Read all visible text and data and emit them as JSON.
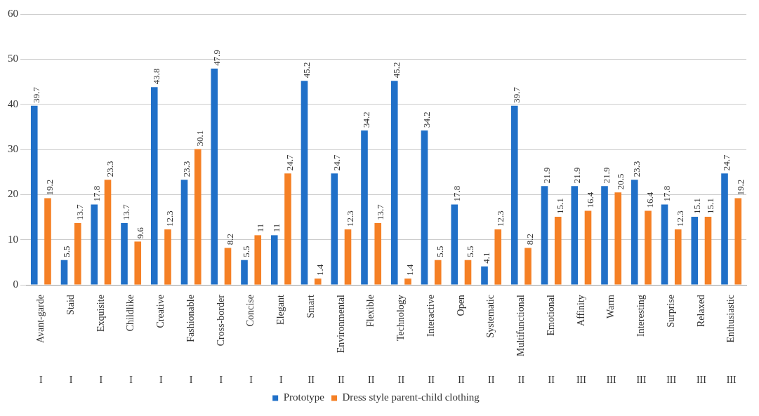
{
  "chart_data": {
    "type": "bar",
    "categories": [
      "Avant-garde",
      "Staid",
      "Exquisite",
      "Childlike",
      "Creative",
      "Fashionable",
      "Cross-border",
      "Concise",
      "Elegant",
      "Smart",
      "Environmental",
      "Flexible",
      "Technology",
      "Interactive",
      "Open",
      "Systematic",
      "Multifunctional",
      "Emotional",
      "Affinity",
      "Warm",
      "Interesting",
      "Surprise",
      "Relaxed",
      "Enthusiastic"
    ],
    "series": [
      {
        "name": "Prototype",
        "color": "#2070c8",
        "values": [
          39.7,
          5.5,
          17.8,
          13.7,
          43.8,
          23.3,
          47.9,
          5.5,
          11,
          45.2,
          24.7,
          34.2,
          45.2,
          34.2,
          17.8,
          4.1,
          39.7,
          21.9,
          21.9,
          21.9,
          23.3,
          17.8,
          15.1,
          24.7
        ]
      },
      {
        "name": "Dress style parent-child clothing",
        "color": "#f58025",
        "values": [
          19.2,
          13.7,
          23.3,
          9.6,
          12.3,
          30.1,
          8.2,
          11,
          24.7,
          1.4,
          12.3,
          13.7,
          1.4,
          5.5,
          5.5,
          12.3,
          8.2,
          15.1,
          16.4,
          20.5,
          16.4,
          12.3,
          15.1,
          19.2
        ]
      }
    ],
    "ylim": [
      0,
      60
    ],
    "yticks": [
      0,
      10,
      20,
      30,
      40,
      50,
      60
    ],
    "grid": "y",
    "legend": "bottom",
    "data_labels": true,
    "annotations": [
      "I",
      "I",
      "I",
      "I",
      "I",
      "I",
      "I",
      "I",
      "I",
      "II",
      "II",
      "II",
      "II",
      "II",
      "II",
      "II",
      "II",
      "II",
      "III",
      "III",
      "III",
      "III",
      "III",
      "III"
    ]
  }
}
